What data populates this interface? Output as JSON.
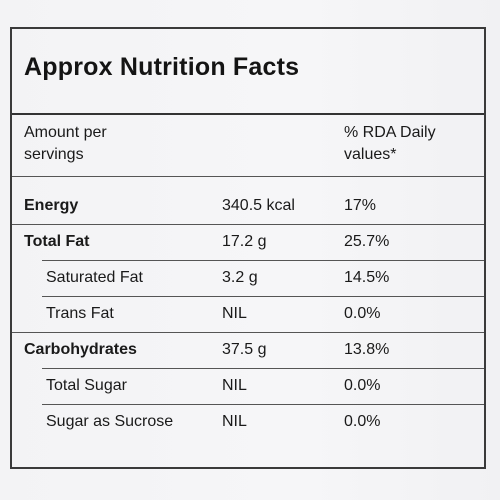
{
  "title": "Approx Nutrition Facts",
  "header": {
    "col1_line1": "Amount per",
    "col1_line2": "servings",
    "col3_line1": "% RDA Daily",
    "col3_line2": "values*"
  },
  "rows": [
    {
      "name": "Energy",
      "amount": "340.5 kcal",
      "rda": "17%",
      "bold": true,
      "indent": false
    },
    {
      "name": "Total Fat",
      "amount": "17.2 g",
      "rda": "25.7%",
      "bold": true,
      "indent": false
    },
    {
      "name": "Saturated Fat",
      "amount": "3.2 g",
      "rda": "14.5%",
      "bold": false,
      "indent": true
    },
    {
      "name": "Trans Fat",
      "amount": "NIL",
      "rda": "0.0%",
      "bold": false,
      "indent": true
    },
    {
      "name": "Carbohydrates",
      "amount": "37.5 g",
      "rda": "13.8%",
      "bold": true,
      "indent": false
    },
    {
      "name": "Total Sugar",
      "amount": "NIL",
      "rda": "0.0%",
      "bold": false,
      "indent": true
    },
    {
      "name": "Sugar as Sucrose",
      "amount": "NIL",
      "rda": "0.0%",
      "bold": false,
      "indent": true
    }
  ]
}
